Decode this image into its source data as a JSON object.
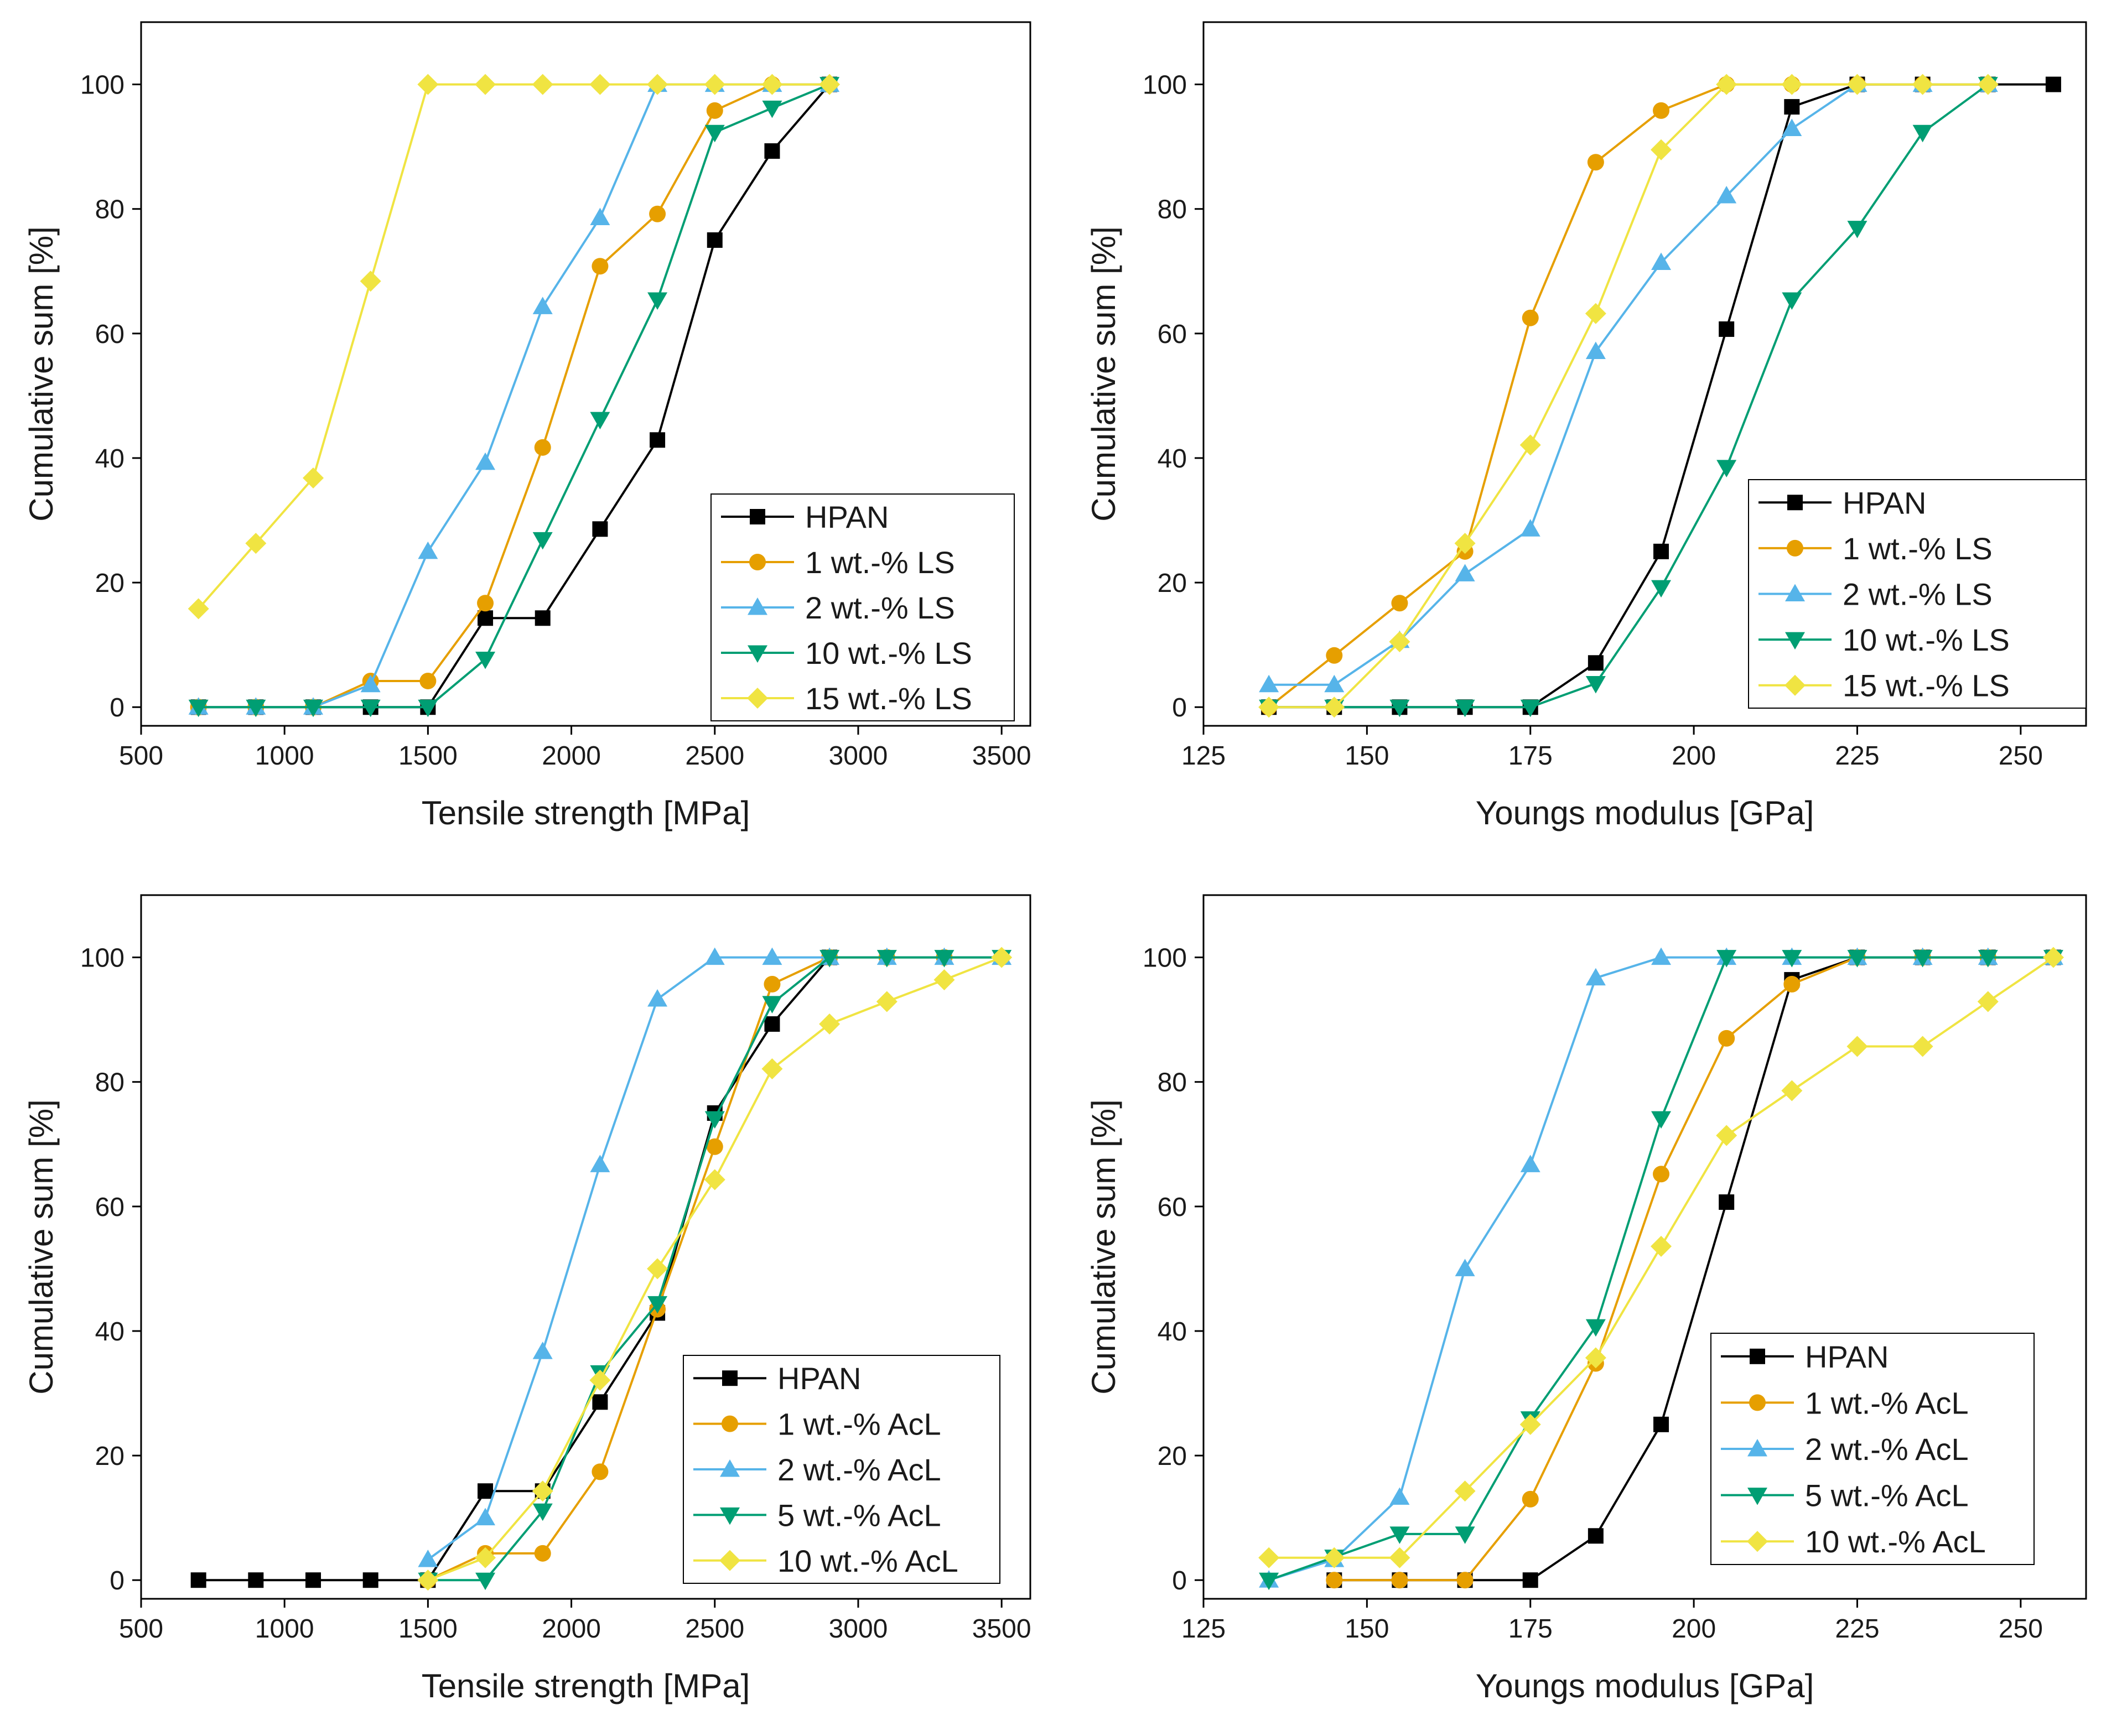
{
  "colors": {
    "hpan": "#000000",
    "s1": "#E69F00",
    "s2": "#56B4E9",
    "s3": "#009E73",
    "s4": "#F0E442"
  },
  "chart_data": [
    {
      "type": "line",
      "xlabel": "Tensile strength [MPa]",
      "ylabel": "Cumulative sum [%]",
      "xlim": [
        500,
        3600
      ],
      "ylim": [
        -3,
        110
      ],
      "xticks": [
        500,
        1000,
        1500,
        2000,
        2500,
        3000,
        3500
      ],
      "yticks": [
        0,
        20,
        40,
        60,
        80,
        100
      ],
      "legend_position": "bottom-right",
      "series": [
        {
          "name": "HPAN",
          "color": "#000000",
          "marker": "square",
          "x": [
            700,
            900,
            1100,
            1300,
            1500,
            1700,
            1900,
            2100,
            2300,
            2500,
            2700,
            2900
          ],
          "y": [
            0,
            0,
            0,
            0,
            0,
            14.3,
            14.3,
            28.6,
            42.9,
            75,
            89.3,
            100
          ]
        },
        {
          "name": "1 wt.-% LS",
          "color": "#E69F00",
          "marker": "circle",
          "x": [
            700,
            900,
            1100,
            1300,
            1500,
            1700,
            1900,
            2100,
            2300,
            2500,
            2700,
            2900
          ],
          "y": [
            0,
            0,
            0,
            4.2,
            4.2,
            16.7,
            41.7,
            70.8,
            79.2,
            95.8,
            100,
            100
          ]
        },
        {
          "name": "2 wt.-% LS",
          "color": "#56B4E9",
          "marker": "triangle-up",
          "x": [
            700,
            900,
            1100,
            1300,
            1500,
            1700,
            1900,
            2100,
            2300,
            2500,
            2700,
            2900
          ],
          "y": [
            0,
            0,
            0,
            3.6,
            25,
            39.3,
            64.3,
            78.6,
            100,
            100,
            100,
            100
          ]
        },
        {
          "name": "10 wt.-% LS",
          "color": "#009E73",
          "marker": "triangle-down",
          "x": [
            700,
            900,
            1100,
            1300,
            1500,
            1700,
            1900,
            2100,
            2300,
            2500,
            2700,
            2900
          ],
          "y": [
            0,
            0,
            0,
            0,
            0,
            7.7,
            26.9,
            46.2,
            65.4,
            92.3,
            96.2,
            100
          ]
        },
        {
          "name": "15 wt.-% LS",
          "color": "#F0E442",
          "marker": "diamond",
          "x": [
            700,
            900,
            1100,
            1300,
            1500,
            1700,
            1900,
            2100,
            2300,
            2500,
            2700,
            2900
          ],
          "y": [
            15.8,
            26.3,
            36.8,
            68.4,
            100,
            100,
            100,
            100,
            100,
            100,
            100,
            100
          ]
        }
      ]
    },
    {
      "type": "line",
      "xlabel": "Youngs modulus [GPa]",
      "ylabel": "Cumulative sum [%]",
      "xlim": [
        125,
        260
      ],
      "ylim": [
        -3,
        110
      ],
      "xticks": [
        125,
        150,
        175,
        200,
        225,
        250
      ],
      "yticks": [
        0,
        20,
        40,
        60,
        80,
        100
      ],
      "legend_position": "bottom-right",
      "series": [
        {
          "name": "HPAN",
          "color": "#000000",
          "marker": "square",
          "x": [
            135,
            145,
            155,
            165,
            175,
            185,
            195,
            205,
            215,
            225,
            235,
            245,
            255
          ],
          "y": [
            0,
            0,
            0,
            0,
            0,
            7.1,
            25,
            60.7,
            96.4,
            100,
            100,
            100,
            100
          ]
        },
        {
          "name": "1 wt.-% LS",
          "color": "#E69F00",
          "marker": "circle",
          "x": [
            135,
            145,
            155,
            165,
            175,
            185,
            195,
            205,
            215,
            225,
            235,
            245
          ],
          "y": [
            0,
            8.3,
            16.7,
            25,
            62.5,
            87.5,
            95.8,
            100,
            100,
            100,
            100,
            100
          ]
        },
        {
          "name": "2 wt.-% LS",
          "color": "#56B4E9",
          "marker": "triangle-up",
          "x": [
            135,
            145,
            155,
            165,
            175,
            185,
            195,
            205,
            215,
            225,
            235,
            245
          ],
          "y": [
            3.6,
            3.6,
            10.7,
            21.4,
            28.6,
            57.1,
            71.4,
            82.1,
            92.9,
            100,
            100,
            100
          ]
        },
        {
          "name": "10 wt.-% LS",
          "color": "#009E73",
          "marker": "triangle-down",
          "x": [
            135,
            145,
            155,
            165,
            175,
            185,
            195,
            205,
            215,
            225,
            235,
            245
          ],
          "y": [
            0,
            0,
            0,
            0,
            0,
            3.8,
            19.2,
            38.5,
            65.4,
            76.9,
            92.3,
            100
          ]
        },
        {
          "name": "15 wt.-% LS",
          "color": "#F0E442",
          "marker": "diamond",
          "x": [
            135,
            145,
            155,
            165,
            175,
            185,
            195,
            205,
            215,
            225,
            235,
            245
          ],
          "y": [
            0,
            0,
            10.5,
            26.3,
            42.1,
            63.2,
            89.5,
            100,
            100,
            100,
            100,
            100
          ]
        }
      ]
    },
    {
      "type": "line",
      "xlabel": "Tensile strength [MPa]",
      "ylabel": "Cumulative sum [%]",
      "xlim": [
        500,
        3600
      ],
      "ylim": [
        -3,
        110
      ],
      "xticks": [
        500,
        1000,
        1500,
        2000,
        2500,
        3000,
        3500
      ],
      "yticks": [
        0,
        20,
        40,
        60,
        80,
        100
      ],
      "legend_position": "bottom-right",
      "series": [
        {
          "name": "HPAN",
          "color": "#000000",
          "marker": "square",
          "x": [
            700,
            900,
            1100,
            1300,
            1500,
            1700,
            1900,
            2100,
            2300,
            2500,
            2700,
            2900
          ],
          "y": [
            0,
            0,
            0,
            0,
            0,
            14.3,
            14.3,
            28.6,
            42.9,
            75,
            89.3,
            100
          ]
        },
        {
          "name": "1 wt.-% AcL",
          "color": "#E69F00",
          "marker": "circle",
          "x": [
            1500,
            1700,
            1900,
            2100,
            2300,
            2500,
            2700,
            2900,
            3100,
            3300,
            3500
          ],
          "y": [
            0,
            4.3,
            4.3,
            17.4,
            43.5,
            69.6,
            95.7,
            100,
            100,
            100,
            100
          ]
        },
        {
          "name": "2 wt.-% AcL",
          "color": "#56B4E9",
          "marker": "triangle-up",
          "x": [
            1500,
            1700,
            1900,
            2100,
            2300,
            2500,
            2700,
            2900,
            3100,
            3300,
            3500
          ],
          "y": [
            3.3,
            10,
            36.7,
            66.7,
            93.3,
            100,
            100,
            100,
            100,
            100,
            100
          ]
        },
        {
          "name": "5 wt.-% AcL",
          "color": "#009E73",
          "marker": "triangle-down",
          "x": [
            1500,
            1700,
            1900,
            2100,
            2300,
            2500,
            2700,
            2900,
            3100,
            3300,
            3500
          ],
          "y": [
            0,
            0,
            11.1,
            33.3,
            44.4,
            74.1,
            92.6,
            100,
            100,
            100,
            100
          ]
        },
        {
          "name": "10 wt.-% AcL",
          "color": "#F0E442",
          "marker": "diamond",
          "x": [
            1500,
            1700,
            1900,
            2100,
            2300,
            2500,
            2700,
            2900,
            3100,
            3300,
            3500
          ],
          "y": [
            0,
            3.6,
            14.3,
            32.1,
            50,
            64.3,
            82.1,
            89.3,
            92.9,
            96.4,
            100
          ]
        }
      ]
    },
    {
      "type": "line",
      "xlabel": "Youngs modulus [GPa]",
      "ylabel": "Cumulative sum [%]",
      "xlim": [
        125,
        260
      ],
      "ylim": [
        -3,
        110
      ],
      "xticks": [
        125,
        150,
        175,
        200,
        225,
        250
      ],
      "yticks": [
        0,
        20,
        40,
        60,
        80,
        100
      ],
      "legend_position": "bottom-right",
      "series": [
        {
          "name": "HPAN",
          "color": "#000000",
          "marker": "square",
          "x": [
            145,
            155,
            165,
            175,
            185,
            195,
            205,
            215,
            225,
            235,
            245,
            255
          ],
          "y": [
            0,
            0,
            0,
            0,
            7.1,
            25,
            60.7,
            96.4,
            100,
            100,
            100,
            100
          ]
        },
        {
          "name": "1 wt.-% AcL",
          "color": "#E69F00",
          "marker": "circle",
          "x": [
            145,
            155,
            165,
            175,
            185,
            195,
            205,
            215,
            225,
            235,
            245,
            255
          ],
          "y": [
            0,
            0,
            0,
            13,
            34.8,
            65.2,
            87,
            95.7,
            100,
            100,
            100,
            100
          ]
        },
        {
          "name": "2 wt.-% AcL",
          "color": "#56B4E9",
          "marker": "triangle-up",
          "x": [
            135,
            145,
            155,
            165,
            175,
            185,
            195,
            205,
            215,
            225,
            235,
            245,
            255
          ],
          "y": [
            0,
            3.3,
            13.3,
            50,
            66.7,
            96.7,
            100,
            100,
            100,
            100,
            100,
            100,
            100
          ]
        },
        {
          "name": "5 wt.-% AcL",
          "color": "#009E73",
          "marker": "triangle-down",
          "x": [
            135,
            145,
            155,
            165,
            175,
            185,
            195,
            205,
            215,
            225,
            235,
            245,
            255
          ],
          "y": [
            0,
            3.7,
            7.4,
            7.4,
            25.9,
            40.7,
            74.1,
            100,
            100,
            100,
            100,
            100,
            100
          ]
        },
        {
          "name": "10 wt.-% AcL",
          "color": "#F0E442",
          "marker": "diamond",
          "x": [
            135,
            145,
            155,
            165,
            175,
            185,
            195,
            205,
            215,
            225,
            235,
            245,
            255
          ],
          "y": [
            3.6,
            3.6,
            3.6,
            14.3,
            25,
            35.7,
            53.6,
            71.4,
            78.6,
            85.7,
            85.7,
            92.9,
            100
          ]
        }
      ]
    }
  ]
}
